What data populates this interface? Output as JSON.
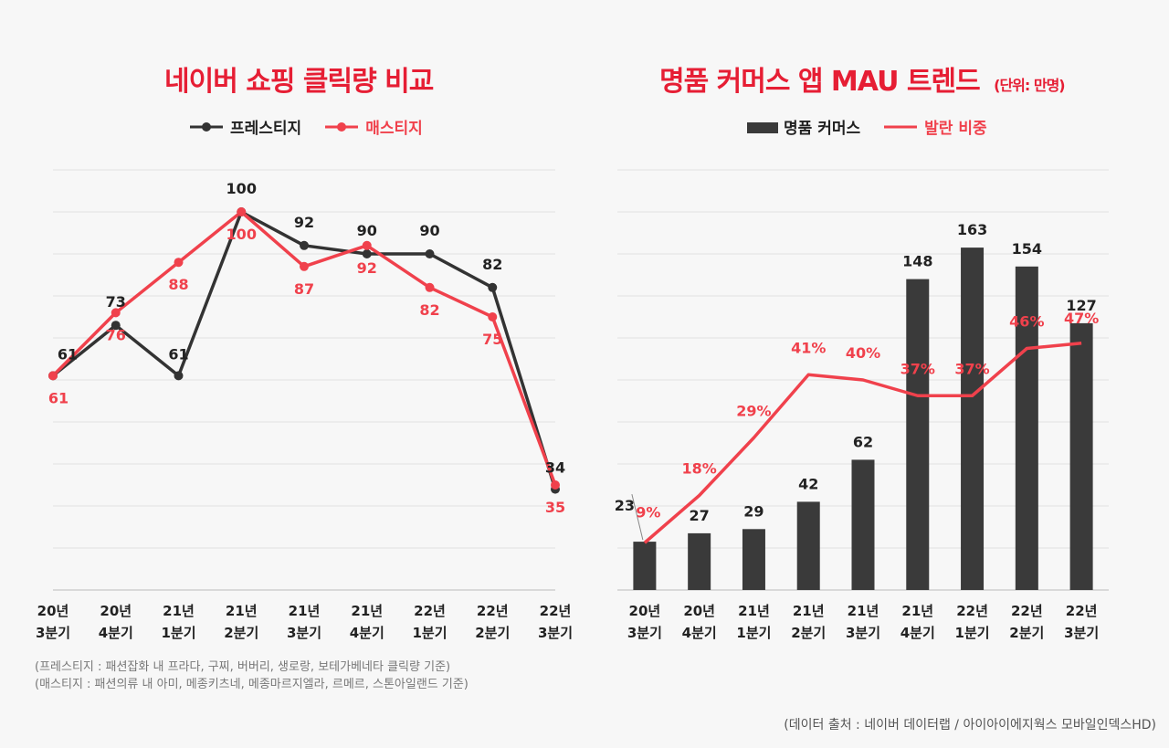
{
  "colors": {
    "accent": "#e61e34",
    "line_red": "#f0414c",
    "dark": "#333333",
    "bar": "#3a3a3a"
  },
  "chart_data": [
    {
      "type": "line",
      "title": "네이버 쇼핑 클릭량 비교",
      "categories": [
        [
          "20년",
          "3분기"
        ],
        [
          "20년",
          "4분기"
        ],
        [
          "21년",
          "1분기"
        ],
        [
          "21년",
          "2분기"
        ],
        [
          "21년",
          "3분기"
        ],
        [
          "21년",
          "4분기"
        ],
        [
          "22년",
          "1분기"
        ],
        [
          "22년",
          "2분기"
        ],
        [
          "22년",
          "3분기"
        ]
      ],
      "series": [
        {
          "name": "프레스티지",
          "values": [
            61,
            73,
            61,
            100,
            92,
            90,
            90,
            82,
            34
          ],
          "labels": [
            "61",
            "73",
            "61",
            "100",
            "92",
            "90",
            "90",
            "82",
            "34"
          ]
        },
        {
          "name": "매스티지",
          "values": [
            61,
            76,
            88,
            100,
            87,
            92,
            82,
            75,
            35
          ],
          "labels": [
            "61",
            "76",
            "88",
            "100",
            "87",
            "92",
            "82",
            "75",
            "35"
          ]
        }
      ],
      "legend": [
        "프레스티지",
        "매스티지"
      ],
      "ylim": [
        10,
        110
      ],
      "grid": true,
      "notes": [
        "(프레스티지 : 패션잡화 내 프라다, 구찌, 버버리, 생로랑, 보테가베네타 클릭량 기준)",
        "(매스티지 : 패션의류 내 아미, 메종키츠네, 메종마르지엘라, 르메르, 스톤아일랜드 기준)"
      ]
    },
    {
      "type": "bar",
      "title": "명품 커머스 앱 MAU 트렌드",
      "unit": "(단위: 만명)",
      "categories": [
        [
          "20년",
          "3분기"
        ],
        [
          "20년",
          "4분기"
        ],
        [
          "21년",
          "1분기"
        ],
        [
          "21년",
          "2분기"
        ],
        [
          "21년",
          "3분기"
        ],
        [
          "21년",
          "4분기"
        ],
        [
          "22년",
          "1분기"
        ],
        [
          "22년",
          "2분기"
        ],
        [
          "22년",
          "3분기"
        ]
      ],
      "series": [
        {
          "name": "명품 커머스",
          "type": "bar",
          "values": [
            23,
            27,
            29,
            42,
            62,
            148,
            163,
            154,
            127
          ],
          "labels": [
            "23",
            "27",
            "29",
            "42",
            "62",
            "148",
            "163",
            "154",
            "127"
          ]
        },
        {
          "name": "발란 비중",
          "type": "line",
          "values": [
            9,
            18,
            29,
            41,
            40,
            37,
            37,
            46,
            47
          ],
          "labels": [
            "9%",
            "18%",
            "29%",
            "41%",
            "40%",
            "37%",
            "37%",
            "46%",
            "47%"
          ]
        }
      ],
      "legend": [
        "명품 커머스",
        "발란 비중"
      ],
      "ylim_bar": [
        0,
        200
      ],
      "ylim_line": [
        0,
        80
      ],
      "grid": true
    }
  ],
  "source": "(데이터 출처 : 네이버 데이터랩 / 아이아이에지웍스 모바일인덱스HD)"
}
